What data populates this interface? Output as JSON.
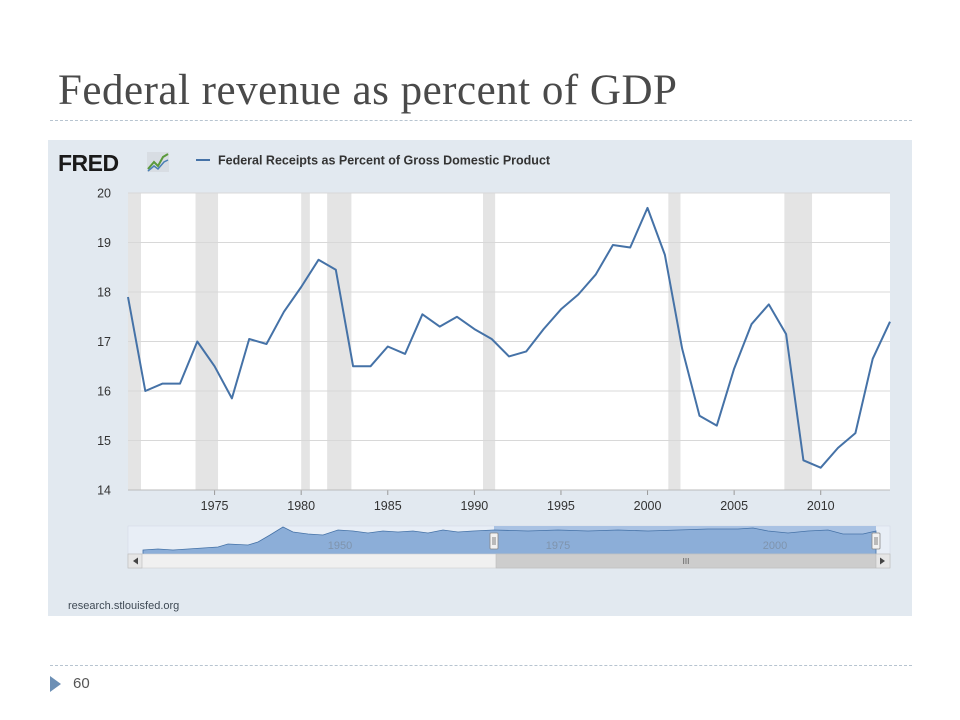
{
  "slide": {
    "title": "Federal revenue as percent of GDP",
    "page_number": "60"
  },
  "fred": {
    "logo_text": "FRED",
    "source": "research.stlouisfed.org",
    "navigator_labels": [
      "1950",
      "1975",
      "2000"
    ],
    "scroll_grip": "III"
  },
  "colors": {
    "line": "#4572a7",
    "panel": "#e2e9f0",
    "recession": "#e4e4e4",
    "navigator_fill": "#9ab7dd"
  },
  "chart_data": {
    "type": "line",
    "title": "",
    "xlabel": "",
    "ylabel": "",
    "legend": "top-left",
    "grid": true,
    "ylim": [
      14,
      20
    ],
    "xlim": [
      1970,
      2014
    ],
    "x_ticks": [
      1975,
      1980,
      1985,
      1990,
      1995,
      2000,
      2005,
      2010
    ],
    "y_ticks": [
      14,
      15,
      16,
      17,
      18,
      19,
      20
    ],
    "series": [
      {
        "name": "Federal Receipts as Percent of Gross Domestic Product",
        "x": [
          1970,
          1971,
          1972,
          1973,
          1974,
          1975,
          1976,
          1977,
          1978,
          1979,
          1980,
          1981,
          1982,
          1983,
          1984,
          1985,
          1986,
          1987,
          1988,
          1989,
          1990,
          1991,
          1992,
          1993,
          1994,
          1995,
          1996,
          1997,
          1998,
          1999,
          2000,
          2001,
          2002,
          2003,
          2004,
          2005,
          2006,
          2007,
          2008,
          2009,
          2010,
          2011,
          2012,
          2013,
          2014
        ],
        "values": [
          17.9,
          16.0,
          16.15,
          16.15,
          17.0,
          16.5,
          15.85,
          17.05,
          16.95,
          17.6,
          18.1,
          18.65,
          18.45,
          16.5,
          16.5,
          16.9,
          16.75,
          17.55,
          17.3,
          17.5,
          17.25,
          17.05,
          16.7,
          16.8,
          17.25,
          17.65,
          17.95,
          18.35,
          18.95,
          18.9,
          19.7,
          18.75,
          16.85,
          15.5,
          15.3,
          16.45,
          17.35,
          17.75,
          17.15,
          14.6,
          14.45,
          14.85,
          15.15,
          16.65,
          17.4
        ]
      }
    ],
    "recessions": [
      [
        1970,
        1970.75
      ],
      [
        1973.9,
        1975.2
      ],
      [
        1980,
        1980.5
      ],
      [
        1981.5,
        1982.9
      ],
      [
        1990.5,
        1991.2
      ],
      [
        2001.2,
        2001.9
      ],
      [
        2007.9,
        2009.5
      ]
    ]
  }
}
